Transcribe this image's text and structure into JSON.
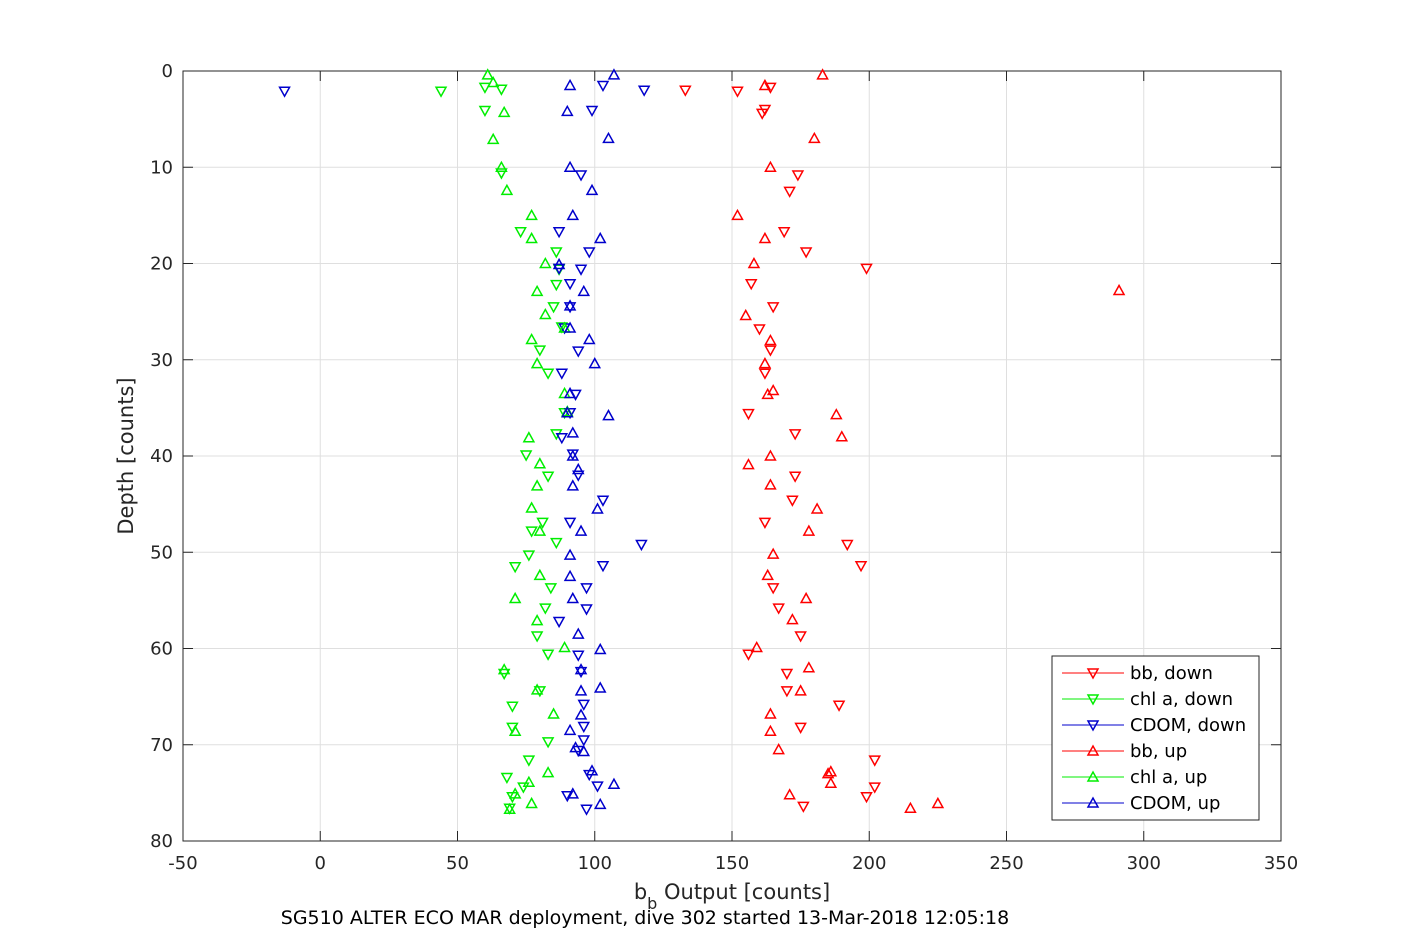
{
  "chart_data": {
    "type": "scatter",
    "xlabel_main": "b",
    "xlabel_sub": "b",
    "xlabel_rest": " Output [counts]",
    "ylabel": "Depth [counts]",
    "caption": "SG510 ALTER ECO MAR deployment, dive 302 started 13-Mar-2018 12:05:18",
    "xlim": [
      -50,
      350
    ],
    "ylim": [
      0,
      80
    ],
    "y_reversed": true,
    "grid": true,
    "legend_position": "lower-right",
    "x_ticks": [
      "-50",
      "0",
      "50",
      "100",
      "150",
      "200",
      "250",
      "300",
      "350"
    ],
    "y_ticks": [
      "0",
      "10",
      "20",
      "30",
      "40",
      "50",
      "60",
      "70",
      "80"
    ],
    "series": [
      {
        "name": "bb, down",
        "color": "#ff0000",
        "marker": "triangle-down",
        "points": [
          [
            133,
            2
          ],
          [
            152,
            2.1
          ],
          [
            162,
            4
          ],
          [
            161,
            4.4
          ],
          [
            174,
            10.8
          ],
          [
            171,
            12.5
          ],
          [
            169,
            16.7
          ],
          [
            177,
            18.8
          ],
          [
            199,
            20.5
          ],
          [
            157,
            22.1
          ],
          [
            165,
            24.5
          ],
          [
            160,
            26.8
          ],
          [
            164,
            29
          ],
          [
            162,
            31.4
          ],
          [
            156,
            35.6
          ],
          [
            173,
            37.7
          ],
          [
            173,
            42.1
          ],
          [
            172,
            44.6
          ],
          [
            162,
            46.9
          ],
          [
            192,
            49.2
          ],
          [
            197,
            51.4
          ],
          [
            165,
            53.7
          ],
          [
            167,
            55.8
          ],
          [
            175,
            58.7
          ],
          [
            156,
            60.6
          ],
          [
            170,
            62.6
          ],
          [
            170,
            64.4
          ],
          [
            189,
            65.9
          ],
          [
            175,
            68.2
          ],
          [
            202,
            71.6
          ],
          [
            199,
            75.4
          ],
          [
            202,
            74.4
          ],
          [
            176,
            76.4
          ],
          [
            164,
            1.7
          ]
        ]
      },
      {
        "name": "chl a, down",
        "color": "#00ee00",
        "marker": "triangle-down",
        "points": [
          [
            44,
            2.1
          ],
          [
            60,
            1.7
          ],
          [
            66,
            1.9
          ],
          [
            60,
            4.1
          ],
          [
            66,
            10.6
          ],
          [
            73,
            16.7
          ],
          [
            86,
            18.8
          ],
          [
            87,
            20.6
          ],
          [
            86,
            22.2
          ],
          [
            85,
            24.5
          ],
          [
            88,
            26.6
          ],
          [
            80,
            29
          ],
          [
            83,
            31.4
          ],
          [
            89,
            35.5
          ],
          [
            86,
            37.7
          ],
          [
            75,
            39.9
          ],
          [
            83,
            42.1
          ],
          [
            77,
            47.8
          ],
          [
            81,
            46.9
          ],
          [
            86,
            49
          ],
          [
            76,
            50.3
          ],
          [
            71,
            51.5
          ],
          [
            84,
            53.7
          ],
          [
            82,
            55.8
          ],
          [
            79,
            58.7
          ],
          [
            83,
            60.6
          ],
          [
            67,
            62.6
          ],
          [
            80,
            64.4
          ],
          [
            70,
            66
          ],
          [
            70,
            68.2
          ],
          [
            83,
            69.7
          ],
          [
            76,
            71.6
          ],
          [
            68,
            73.4
          ],
          [
            74,
            74.4
          ],
          [
            70,
            75.4
          ],
          [
            69,
            76.6
          ]
        ]
      },
      {
        "name": "CDOM, down",
        "color": "#0000cc",
        "marker": "triangle-down",
        "points": [
          [
            -13,
            2.1
          ],
          [
            103,
            1.5
          ],
          [
            118,
            2
          ],
          [
            99,
            4.1
          ],
          [
            95,
            10.8
          ],
          [
            87,
            16.7
          ],
          [
            98,
            18.8
          ],
          [
            87,
            20.5
          ],
          [
            95,
            20.6
          ],
          [
            91,
            22.1
          ],
          [
            91,
            24.5
          ],
          [
            89,
            26.7
          ],
          [
            94,
            29.1
          ],
          [
            88,
            31.4
          ],
          [
            93,
            33.6
          ],
          [
            91,
            35.5
          ],
          [
            88,
            38.1
          ],
          [
            92,
            39.8
          ],
          [
            94,
            42
          ],
          [
            103,
            44.6
          ],
          [
            91,
            46.9
          ],
          [
            117,
            49.2
          ],
          [
            103,
            51.4
          ],
          [
            97,
            53.7
          ],
          [
            97,
            55.9
          ],
          [
            87,
            57.2
          ],
          [
            94,
            60.7
          ],
          [
            95,
            62.4
          ],
          [
            96,
            65.8
          ],
          [
            96,
            68.1
          ],
          [
            96,
            69.5
          ],
          [
            94,
            70.6
          ],
          [
            98,
            73.1
          ],
          [
            101,
            74.3
          ],
          [
            90,
            75.3
          ],
          [
            97,
            76.7
          ]
        ]
      },
      {
        "name": "bb, up",
        "color": "#ff0000",
        "marker": "triangle-up",
        "points": [
          [
            183,
            0.4
          ],
          [
            162,
            1.5
          ],
          [
            180,
            7
          ],
          [
            164,
            10
          ],
          [
            152,
            15
          ],
          [
            162,
            17.4
          ],
          [
            158,
            20
          ],
          [
            291,
            22.8
          ],
          [
            155,
            25.4
          ],
          [
            164,
            28
          ],
          [
            162,
            30.4
          ],
          [
            165,
            33.2
          ],
          [
            163,
            33.6
          ],
          [
            188,
            35.7
          ],
          [
            190,
            38
          ],
          [
            164,
            40
          ],
          [
            156,
            40.9
          ],
          [
            164,
            43
          ],
          [
            181,
            45.5
          ],
          [
            178,
            47.8
          ],
          [
            165,
            50.2
          ],
          [
            163,
            52.4
          ],
          [
            177,
            54.8
          ],
          [
            172,
            57
          ],
          [
            159,
            59.9
          ],
          [
            178,
            62
          ],
          [
            175,
            64.4
          ],
          [
            164,
            66.8
          ],
          [
            164,
            68.6
          ],
          [
            167,
            70.5
          ],
          [
            186,
            72.8
          ],
          [
            185,
            73
          ],
          [
            186,
            74
          ],
          [
            171,
            75.2
          ],
          [
            225,
            76.1
          ],
          [
            215,
            76.6
          ]
        ]
      },
      {
        "name": "chl a, up",
        "color": "#00ee00",
        "marker": "triangle-up",
        "points": [
          [
            61,
            0.4
          ],
          [
            63,
            1.2
          ],
          [
            67,
            4.3
          ],
          [
            63,
            7.1
          ],
          [
            66,
            10
          ],
          [
            68,
            12.4
          ],
          [
            77,
            15
          ],
          [
            77,
            17.4
          ],
          [
            82,
            20
          ],
          [
            79,
            22.9
          ],
          [
            82,
            25.3
          ],
          [
            89,
            26.7
          ],
          [
            77,
            27.9
          ],
          [
            79,
            30.4
          ],
          [
            89,
            33.5
          ],
          [
            90,
            35.4
          ],
          [
            76,
            38.1
          ],
          [
            80,
            40.8
          ],
          [
            79,
            43.1
          ],
          [
            77,
            45.4
          ],
          [
            80,
            47.8
          ],
          [
            80,
            52.4
          ],
          [
            71,
            54.8
          ],
          [
            79,
            57.1
          ],
          [
            89,
            59.9
          ],
          [
            67,
            62.2
          ],
          [
            79,
            64.3
          ],
          [
            85,
            66.8
          ],
          [
            71,
            68.6
          ],
          [
            83,
            72.9
          ],
          [
            76,
            73.9
          ],
          [
            71,
            75.1
          ],
          [
            77,
            76.1
          ],
          [
            69,
            76.7
          ]
        ]
      },
      {
        "name": "CDOM, up",
        "color": "#0000cc",
        "marker": "triangle-up",
        "points": [
          [
            107,
            0.4
          ],
          [
            91,
            1.5
          ],
          [
            90,
            4.2
          ],
          [
            105,
            7
          ],
          [
            91,
            10
          ],
          [
            99,
            12.4
          ],
          [
            92,
            15
          ],
          [
            102,
            17.4
          ],
          [
            87,
            20.1
          ],
          [
            96,
            22.9
          ],
          [
            91,
            24.4
          ],
          [
            91,
            26.7
          ],
          [
            98,
            27.9
          ],
          [
            100,
            30.4
          ],
          [
            91,
            33.5
          ],
          [
            90,
            35.5
          ],
          [
            92,
            37.6
          ],
          [
            105,
            35.8
          ],
          [
            92,
            40
          ],
          [
            94,
            41.4
          ],
          [
            92,
            43.1
          ],
          [
            101,
            45.5
          ],
          [
            95,
            47.8
          ],
          [
            91,
            50.3
          ],
          [
            91,
            52.5
          ],
          [
            92,
            54.8
          ],
          [
            94,
            58.5
          ],
          [
            102,
            60.1
          ],
          [
            95,
            62.2
          ],
          [
            95,
            64.4
          ],
          [
            102,
            64.1
          ],
          [
            91,
            68.5
          ],
          [
            95,
            66.9
          ],
          [
            93,
            70.3
          ],
          [
            96,
            70.7
          ],
          [
            99,
            72.7
          ],
          [
            107,
            74.1
          ],
          [
            92,
            75.1
          ],
          [
            102,
            76.2
          ]
        ]
      }
    ]
  }
}
